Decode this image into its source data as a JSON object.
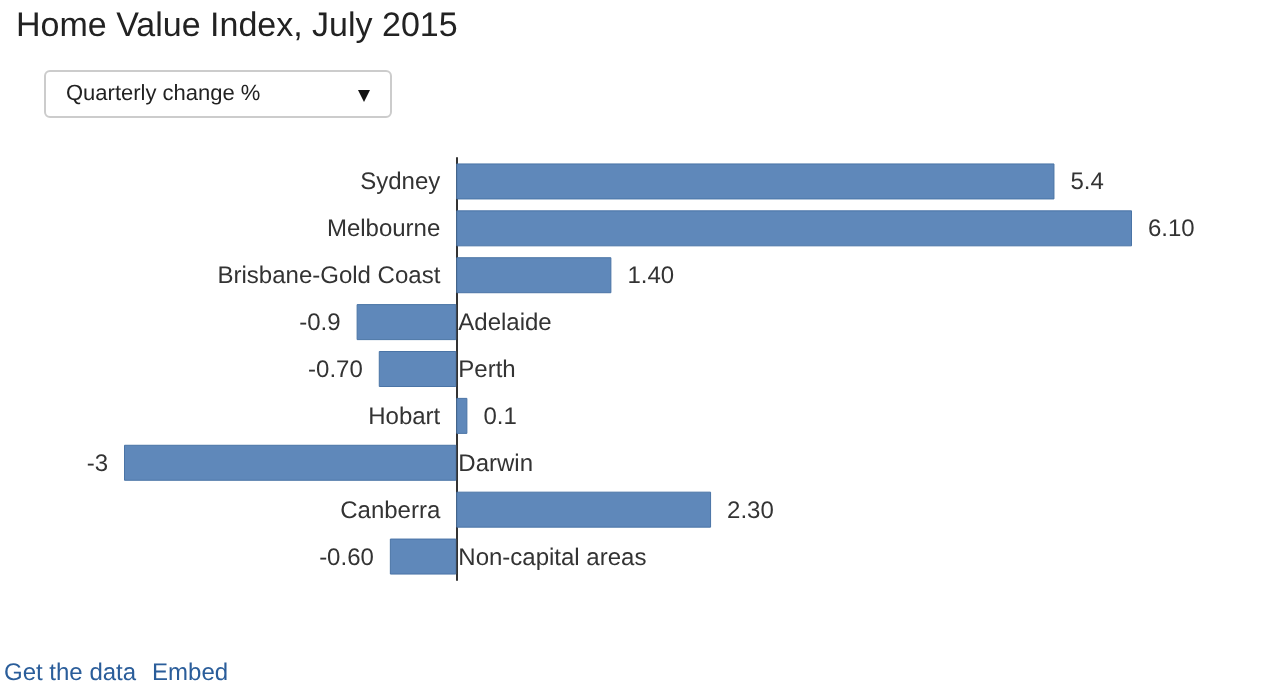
{
  "chart_data": {
    "type": "bar",
    "orientation": "horizontal",
    "title": "Home Value Index, July 2015",
    "subtitle": "Quarterly change %",
    "categories": [
      "Sydney",
      "Melbourne",
      "Brisbane-Gold Coast",
      "Adelaide",
      "Perth",
      "Hobart",
      "Darwin",
      "Canberra",
      "Non-capital areas"
    ],
    "values": [
      5.4,
      6.1,
      1.4,
      -0.9,
      -0.7,
      0.1,
      -3,
      2.3,
      -0.6
    ],
    "value_labels": [
      "5.4",
      "6.10",
      "1.40",
      "-0.9",
      "-0.70",
      "0.1",
      "-3",
      "2.30",
      "-0.60"
    ],
    "color": "#5f88ba",
    "annotations": [
      "Get the data",
      "Embed"
    ]
  }
}
